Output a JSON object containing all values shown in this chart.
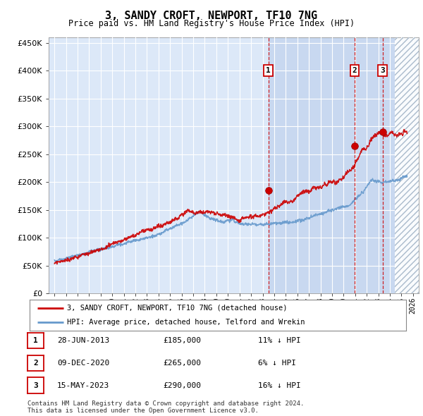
{
  "title": "3, SANDY CROFT, NEWPORT, TF10 7NG",
  "subtitle": "Price paid vs. HM Land Registry's House Price Index (HPI)",
  "plot_bg_color": "#dce8f8",
  "highlight_bg_color": "#c8d8f0",
  "grid_color": "#ffffff",
  "ylim": [
    0,
    460000
  ],
  "yticks": [
    0,
    50000,
    100000,
    150000,
    200000,
    250000,
    300000,
    350000,
    400000,
    450000
  ],
  "ytick_labels": [
    "£0",
    "£50K",
    "£100K",
    "£150K",
    "£200K",
    "£250K",
    "£300K",
    "£350K",
    "£400K",
    "£450K"
  ],
  "sale_prices": [
    185000,
    265000,
    290000
  ],
  "sale_labels": [
    "1",
    "2",
    "3"
  ],
  "sale_year_floats": [
    2013.49,
    2020.94,
    2023.37
  ],
  "sale_info": [
    {
      "label": "1",
      "date": "28-JUN-2013",
      "price": "£185,000",
      "hpi": "11% ↓ HPI"
    },
    {
      "label": "2",
      "date": "09-DEC-2020",
      "price": "£265,000",
      "hpi": "6% ↓ HPI"
    },
    {
      "label": "3",
      "date": "15-MAY-2023",
      "price": "£290,000",
      "hpi": "16% ↓ HPI"
    }
  ],
  "legend_line1": "3, SANDY CROFT, NEWPORT, TF10 7NG (detached house)",
  "legend_line2": "HPI: Average price, detached house, Telford and Wrekin",
  "footer": "Contains HM Land Registry data © Crown copyright and database right 2024.\nThis data is licensed under the Open Government Licence v3.0.",
  "line_color_red": "#cc0000",
  "line_color_blue": "#6699cc",
  "vline_color": "#cc0000",
  "highlight_start_year": 2013.49,
  "hatch_start_year": 2024.42,
  "xlim_start": 1994.5,
  "xlim_end": 2026.5,
  "fig_width": 6.0,
  "fig_height": 5.9
}
